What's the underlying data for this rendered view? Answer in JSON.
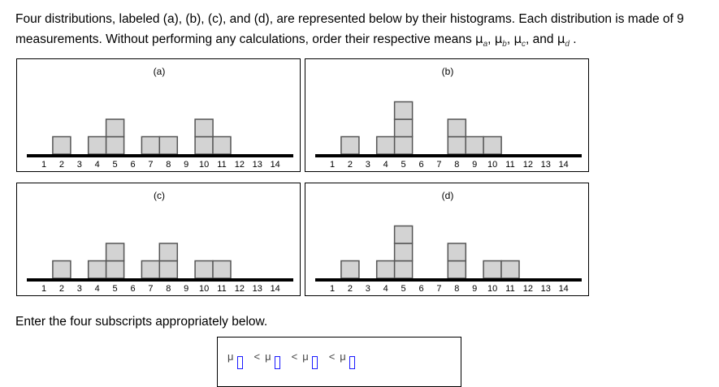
{
  "question": {
    "line1": "Four distributions, labeled (a), (b), (c), and (d), are represented below by their histograms. Each distribution is made of",
    "count": "9",
    "line2": "measurements. Without performing any calculations, order their respective means",
    "mu": "μ",
    "subs": [
      "a",
      "b",
      "c",
      "d"
    ],
    "sep": ",",
    "and": ", and",
    "end": "."
  },
  "chart_data": [
    {
      "type": "bar",
      "title": "(a)",
      "categories": [
        "1",
        "2",
        "3",
        "4",
        "5",
        "6",
        "7",
        "8",
        "9",
        "10",
        "11",
        "12",
        "13",
        "14"
      ],
      "values": [
        0,
        1,
        0,
        1,
        2,
        0,
        1,
        1,
        0,
        2,
        1,
        0,
        0,
        0
      ]
    },
    {
      "type": "bar",
      "title": "(b)",
      "categories": [
        "1",
        "2",
        "3",
        "4",
        "5",
        "6",
        "7",
        "8",
        "9",
        "10",
        "11",
        "12",
        "13",
        "14"
      ],
      "values": [
        0,
        1,
        0,
        1,
        3,
        0,
        0,
        2,
        1,
        1,
        0,
        0,
        0,
        0
      ]
    },
    {
      "type": "bar",
      "title": "(c)",
      "categories": [
        "1",
        "2",
        "3",
        "4",
        "5",
        "6",
        "7",
        "8",
        "9",
        "10",
        "11",
        "12",
        "13",
        "14"
      ],
      "values": [
        0,
        1,
        0,
        1,
        2,
        0,
        1,
        2,
        0,
        1,
        1,
        0,
        0,
        0
      ]
    },
    {
      "type": "bar",
      "title": "(d)",
      "categories": [
        "1",
        "2",
        "3",
        "4",
        "5",
        "6",
        "7",
        "8",
        "9",
        "10",
        "11",
        "12",
        "13",
        "14"
      ],
      "values": [
        0,
        1,
        0,
        1,
        3,
        0,
        0,
        2,
        0,
        1,
        1,
        0,
        0,
        0
      ]
    }
  ],
  "colors": {
    "bar_fill": "#d3d3d3",
    "bar_stroke": "#555555",
    "answer_slot": "#1a1aff"
  },
  "instruction": "Enter the four subscripts appropriately below.",
  "answer": {
    "mu": "μ",
    "lt": "<"
  }
}
